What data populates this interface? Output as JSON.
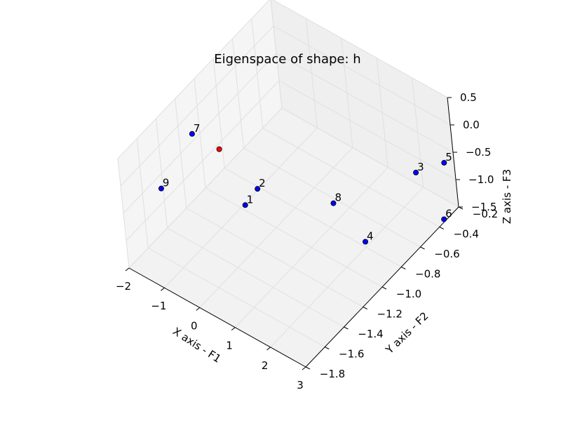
{
  "chart_data": {
    "type": "scatter",
    "title": "Eigenspace of shape: h",
    "xlabel": "X axis - F1",
    "ylabel": "Y axis - F2",
    "zlabel": "Z axis - F3",
    "xlim": [
      -2,
      3
    ],
    "ylim": [
      -1.8,
      -0.2
    ],
    "zlim": [
      -1.5,
      0.5
    ],
    "x_ticks": [
      "−2",
      "−1",
      "0",
      "1",
      "2",
      "3"
    ],
    "y_ticks": [
      "−1.8",
      "−1.6",
      "−1.4",
      "−1.2",
      "−1.0",
      "−0.8",
      "−0.6",
      "−0.4",
      "−0.2"
    ],
    "z_ticks": [
      "−1.5",
      "−1.0",
      "−0.5",
      "0.0",
      "0.5"
    ],
    "grid": true,
    "points": [
      {
        "label": "1",
        "x": -0.7,
        "y": -1.05,
        "z": -1.25,
        "color": "#0000ff"
      },
      {
        "label": "2",
        "x": -0.6,
        "y": -0.95,
        "z": -1.1,
        "color": "#0000ff"
      },
      {
        "label": "3",
        "x": 2.3,
        "y": -0.35,
        "z": -0.85,
        "color": "#0000ff"
      },
      {
        "label": "4",
        "x": 2.0,
        "y": -0.8,
        "z": -1.4,
        "color": "#0000ff"
      },
      {
        "label": "5",
        "x": 2.7,
        "y": -0.2,
        "z": -0.8,
        "color": "#0000ff"
      },
      {
        "label": "6",
        "x": 3.0,
        "y": -0.35,
        "z": -1.45,
        "color": "#0000ff"
      },
      {
        "label": "7",
        "x": -1.6,
        "y": -1.2,
        "z": 0.0,
        "color": "#0000ff"
      },
      {
        "label": "8",
        "x": 1.0,
        "y": -0.75,
        "z": -1.15,
        "color": "#0000ff"
      },
      {
        "label": "9",
        "x": -1.9,
        "y": -1.45,
        "z": -0.65,
        "color": "#0000ff"
      },
      {
        "label": "",
        "x": -1.15,
        "y": -1.1,
        "z": -0.3,
        "color": "#ff0000"
      }
    ]
  }
}
